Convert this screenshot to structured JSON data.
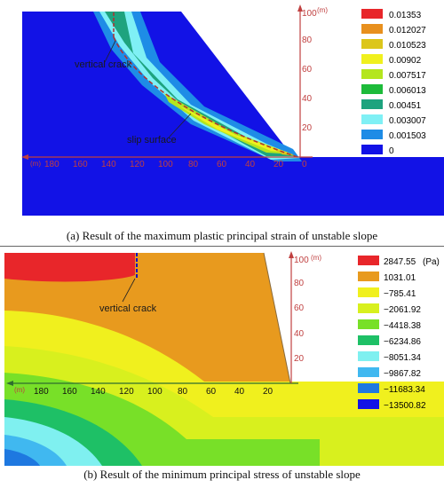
{
  "figure_a": {
    "caption_prefix": "(a)",
    "caption": "Result of the maximum plastic principal strain of unstable slope",
    "unit": "(m)",
    "x_ticks": [
      "180",
      "160",
      "140",
      "120",
      "100",
      "80",
      "60",
      "40",
      "20",
      "0"
    ],
    "y_ticks": [
      "100",
      "80",
      "60",
      "40",
      "20"
    ],
    "annotations": {
      "crack": "vertical crack",
      "slip": "slip surface"
    },
    "legend": {
      "values": [
        "0.01353",
        "0.012027",
        "0.010523",
        "0.00902",
        "0.007517",
        "0.006013",
        "0.00451",
        "0.003007",
        "0.001503",
        "0"
      ],
      "colors": [
        "#e8262a",
        "#e8901e",
        "#dcc61b",
        "#f0f01e",
        "#b4e61e",
        "#1dbb3a",
        "#1ea37e",
        "#7ff0f5",
        "#1e8ce6",
        "#1212e6"
      ]
    }
  },
  "figure_b": {
    "caption_prefix": "(b)",
    "caption": "Result of the minimum principal stress of unstable slope",
    "unit": "(m)",
    "stress_unit": "(Pa)",
    "x_ticks": [
      "180",
      "160",
      "140",
      "120",
      "100",
      "80",
      "60",
      "40",
      "20"
    ],
    "y_ticks": [
      "100",
      "80",
      "60",
      "40",
      "20"
    ],
    "annotations": {
      "crack": "vertical crack"
    },
    "legend": {
      "values": [
        "2847.55",
        "1031.01",
        "−785.41",
        "−2061.92",
        "−4418.38",
        "−6234.86",
        "−8051.34",
        "−9867.82",
        "−11683.34",
        "−13500.82"
      ],
      "colors": [
        "#e8262a",
        "#e89a1e",
        "#f0f01e",
        "#d8f01e",
        "#78e028",
        "#1ec066",
        "#7ff0f0",
        "#40b8f0",
        "#1e78e0",
        "#1212e6"
      ]
    }
  }
}
